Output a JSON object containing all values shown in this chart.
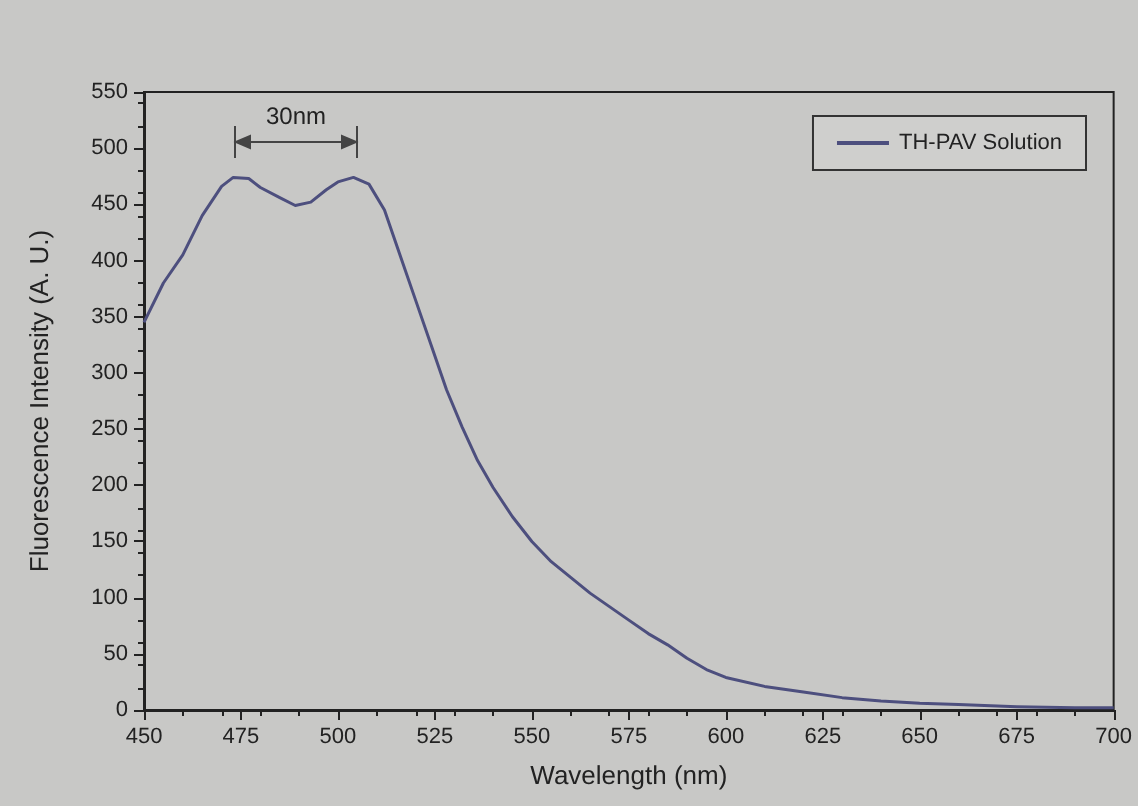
{
  "chart_data": {
    "type": "line",
    "xlabel": "Wavelength (nm)",
    "ylabel": "Fluorescence Intensity (A. U.)",
    "x": [
      450,
      455,
      460,
      465,
      470,
      473,
      477,
      480,
      485,
      489,
      493,
      497,
      500,
      504,
      508,
      512,
      516,
      520,
      524,
      528,
      532,
      536,
      540,
      545,
      550,
      555,
      560,
      565,
      570,
      575,
      580,
      585,
      590,
      595,
      600,
      610,
      620,
      630,
      640,
      650,
      660,
      675,
      690,
      700
    ],
    "series": [
      {
        "name": "TH-PAV Solution",
        "color": "#4d4f7e",
        "values": [
          345,
          380,
          405,
          440,
          466,
          474,
          473,
          465,
          456,
          449,
          452,
          463,
          470,
          474,
          468,
          445,
          405,
          365,
          325,
          285,
          252,
          222,
          198,
          172,
          150,
          132,
          118,
          104,
          92,
          80,
          68,
          58,
          46,
          36,
          29,
          21,
          16,
          11,
          8,
          6,
          5,
          3,
          2,
          2
        ]
      }
    ],
    "xlim": [
      450,
      700
    ],
    "xticks": [
      450,
      475,
      500,
      525,
      550,
      575,
      600,
      625,
      650,
      675,
      700
    ],
    "ylim": [
      0,
      550
    ],
    "yticks": [
      0,
      50,
      100,
      150,
      200,
      250,
      300,
      350,
      400,
      450,
      500,
      550
    ],
    "annotations": [
      "30nm"
    ],
    "legend": "top right",
    "grid": false,
    "marker": "none",
    "line_style": "solid"
  }
}
